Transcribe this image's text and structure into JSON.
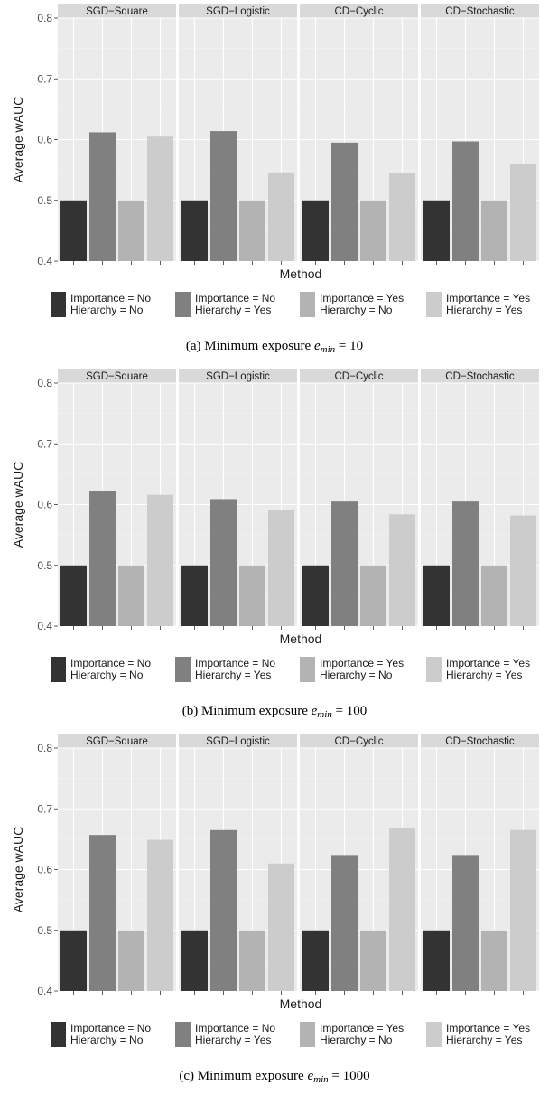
{
  "colors": {
    "panel_bg": "#ebebeb",
    "strip_bg": "#d9d9d9",
    "grid_major": "#ffffff",
    "grid_minor": "#f5f5f5",
    "axis_text": "#4d4d4d",
    "series": [
      "#333333",
      "#808080",
      "#b3b3b3",
      "#cccccc"
    ]
  },
  "legend": [
    {
      "line1": "Importance = No",
      "line2": "Hierarchy = No"
    },
    {
      "line1": "Importance = No",
      "line2": "Hierarchy = Yes"
    },
    {
      "line1": "Importance = Yes",
      "line2": "Hierarchy = No"
    },
    {
      "line1": "Importance = Yes",
      "line2": "Hierarchy = Yes"
    }
  ],
  "chart_data": [
    {
      "type": "bar",
      "caption": {
        "prefix": "(a) Minimum exposure ",
        "var": "e",
        "sub": "min",
        "suffix": " = 10"
      },
      "xlabel": "Method",
      "ylabel": "Average wAUC",
      "ylim": [
        0.4,
        0.8
      ],
      "yticks": [
        "0.4",
        "0.5",
        "0.6",
        "0.7",
        "0.8"
      ],
      "facets": [
        "SGD−Square",
        "SGD−Logistic",
        "CD−Cyclic",
        "CD−Stochastic"
      ],
      "series": [
        {
          "name": "Importance = No, Hierarchy = No",
          "values": [
            0.5,
            0.5,
            0.5,
            0.5
          ]
        },
        {
          "name": "Importance = No, Hierarchy = Yes",
          "values": [
            0.612,
            0.614,
            0.595,
            0.597
          ]
        },
        {
          "name": "Importance = Yes, Hierarchy = No",
          "values": [
            0.5,
            0.5,
            0.5,
            0.5
          ]
        },
        {
          "name": "Importance = Yes, Hierarchy = Yes",
          "values": [
            0.605,
            0.546,
            0.545,
            0.56
          ]
        }
      ]
    },
    {
      "type": "bar",
      "caption": {
        "prefix": "(b) Minimum exposure ",
        "var": "e",
        "sub": "min",
        "suffix": " = 100"
      },
      "xlabel": "Method",
      "ylabel": "Average wAUC",
      "ylim": [
        0.4,
        0.8
      ],
      "yticks": [
        "0.4",
        "0.5",
        "0.6",
        "0.7",
        "0.8"
      ],
      "facets": [
        "SGD−Square",
        "SGD−Logistic",
        "CD−Cyclic",
        "CD−Stochastic"
      ],
      "series": [
        {
          "name": "Importance = No, Hierarchy = No",
          "values": [
            0.5,
            0.5,
            0.5,
            0.5
          ]
        },
        {
          "name": "Importance = No, Hierarchy = Yes",
          "values": [
            0.623,
            0.609,
            0.605,
            0.605
          ]
        },
        {
          "name": "Importance = Yes, Hierarchy = No",
          "values": [
            0.5,
            0.5,
            0.5,
            0.5
          ]
        },
        {
          "name": "Importance = Yes, Hierarchy = Yes",
          "values": [
            0.616,
            0.591,
            0.584,
            0.582
          ]
        }
      ]
    },
    {
      "type": "bar",
      "caption": {
        "prefix": "(c) Minimum exposure ",
        "var": "e",
        "sub": "min",
        "suffix": " = 1000"
      },
      "xlabel": "Method",
      "ylabel": "Average wAUC",
      "ylim": [
        0.4,
        0.8
      ],
      "yticks": [
        "0.4",
        "0.5",
        "0.6",
        "0.7",
        "0.8"
      ],
      "facets": [
        "SGD−Square",
        "SGD−Logistic",
        "CD−Cyclic",
        "CD−Stochastic"
      ],
      "series": [
        {
          "name": "Importance = No, Hierarchy = No",
          "values": [
            0.5,
            0.5,
            0.5,
            0.5
          ]
        },
        {
          "name": "Importance = No, Hierarchy = Yes",
          "values": [
            0.657,
            0.665,
            0.624,
            0.624
          ]
        },
        {
          "name": "Importance = Yes, Hierarchy = No",
          "values": [
            0.5,
            0.5,
            0.5,
            0.5
          ]
        },
        {
          "name": "Importance = Yes, Hierarchy = Yes",
          "values": [
            0.649,
            0.61,
            0.669,
            0.665
          ]
        }
      ]
    }
  ]
}
